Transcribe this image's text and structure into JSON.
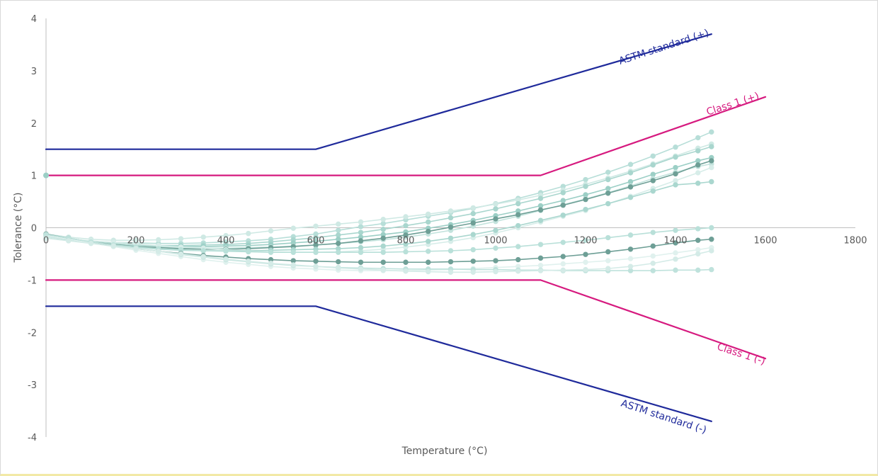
{
  "chart_data": {
    "type": "line",
    "xlabel": "Temperature (°C)",
    "ylabel": "Tolerance (°C)",
    "xlim": [
      0,
      1800
    ],
    "ylim": [
      -4,
      4
    ],
    "x_ticks": [
      "0",
      "200",
      "400",
      "600",
      "800",
      "1000",
      "1200",
      "1400",
      "1600",
      "1800"
    ],
    "y_ticks": [
      "-4",
      "-3",
      "-2",
      "-1",
      "0",
      "1",
      "2",
      "3",
      "4"
    ],
    "grid": false,
    "legend": "none",
    "limit_lines": [
      {
        "label": "ASTM standard (+)",
        "color": "#1f2a9b",
        "points": [
          [
            0,
            1.5
          ],
          [
            560,
            1.5
          ],
          [
            600,
            1.5
          ],
          [
            1480,
            3.7
          ]
        ]
      },
      {
        "label": "ASTM standard (-)",
        "color": "#1f2a9b",
        "points": [
          [
            0,
            -1.5
          ],
          [
            560,
            -1.5
          ],
          [
            600,
            -1.5
          ],
          [
            1480,
            -3.7
          ]
        ]
      },
      {
        "label": "Class 1 (+)",
        "color": "#d61a7f",
        "points": [
          [
            0,
            1.0
          ],
          [
            1060,
            1.0
          ],
          [
            1100,
            1.0
          ],
          [
            1600,
            2.5
          ]
        ]
      },
      {
        "label": "Class 1 (-)",
        "color": "#d61a7f",
        "points": [
          [
            0,
            -1.0
          ],
          [
            1060,
            -1.0
          ],
          [
            1100,
            -1.0
          ],
          [
            1600,
            -2.5
          ]
        ]
      }
    ],
    "measured_series": {
      "x": [
        0,
        50,
        100,
        150,
        200,
        250,
        300,
        350,
        400,
        450,
        500,
        550,
        600,
        650,
        700,
        750,
        800,
        850,
        900,
        950,
        1000,
        1050,
        1100,
        1150,
        1200,
        1250,
        1300,
        1350,
        1400,
        1450,
        1480
      ],
      "series": [
        {
          "color": "#b7ded8",
          "values": [
            -0.16,
            -0.22,
            -0.26,
            -0.28,
            -0.29,
            -0.3,
            -0.3,
            -0.29,
            -0.27,
            -0.25,
            -0.22,
            -0.17,
            -0.12,
            -0.05,
            0.02,
            0.08,
            0.15,
            0.22,
            0.29,
            0.37,
            0.46,
            0.56,
            0.67,
            0.79,
            0.92,
            1.06,
            1.21,
            1.37,
            1.54,
            1.72,
            1.83
          ]
        },
        {
          "color": "#cfe9e4",
          "values": [
            -0.12,
            -0.18,
            -0.22,
            -0.24,
            -0.24,
            -0.23,
            -0.21,
            -0.18,
            -0.15,
            -0.11,
            -0.06,
            -0.01,
            0.03,
            0.07,
            0.11,
            0.16,
            0.21,
            0.26,
            0.32,
            0.38,
            0.45,
            0.53,
            0.62,
            0.72,
            0.83,
            0.95,
            1.08,
            1.22,
            1.37,
            1.52,
            1.6
          ]
        },
        {
          "color": "#a9d6ce",
          "values": [
            -0.18,
            -0.23,
            -0.28,
            -0.31,
            -0.33,
            -0.34,
            -0.34,
            -0.33,
            -0.32,
            -0.3,
            -0.27,
            -0.23,
            -0.19,
            -0.14,
            -0.09,
            -0.03,
            0.04,
            0.11,
            0.19,
            0.27,
            0.36,
            0.46,
            0.56,
            0.67,
            0.79,
            0.92,
            1.05,
            1.2,
            1.35,
            1.47,
            1.55
          ]
        },
        {
          "color": "#9ccfc6",
          "values": [
            -0.15,
            -0.21,
            -0.26,
            -0.3,
            -0.33,
            -0.35,
            -0.36,
            -0.36,
            -0.35,
            -0.34,
            -0.32,
            -0.29,
            -0.26,
            -0.22,
            -0.18,
            -0.13,
            -0.08,
            -0.01,
            0.06,
            0.14,
            0.23,
            0.32,
            0.42,
            0.52,
            0.63,
            0.75,
            0.88,
            1.02,
            1.15,
            1.28,
            1.34
          ]
        },
        {
          "color": "#c3e3dd",
          "values": [
            -0.17,
            -0.22,
            -0.27,
            -0.31,
            -0.34,
            -0.37,
            -0.38,
            -0.39,
            -0.39,
            -0.38,
            -0.37,
            -0.35,
            -0.33,
            -0.3,
            -0.27,
            -0.23,
            -0.18,
            -0.12,
            -0.05,
            0.03,
            0.12,
            0.22,
            0.33,
            0.44,
            0.55,
            0.67,
            0.8,
            0.94,
            1.06,
            1.17,
            1.22
          ]
        },
        {
          "color": "#6e9f96",
          "values": [
            -0.12,
            -0.2,
            -0.27,
            -0.32,
            -0.36,
            -0.38,
            -0.4,
            -0.41,
            -0.41,
            -0.4,
            -0.38,
            -0.36,
            -0.33,
            -0.3,
            -0.25,
            -0.2,
            -0.14,
            -0.07,
            0.01,
            0.09,
            0.17,
            0.25,
            0.34,
            0.43,
            0.54,
            0.66,
            0.78,
            0.9,
            1.03,
            1.2,
            1.28
          ]
        },
        {
          "color": "#d7ede9",
          "values": [
            -0.18,
            -0.22,
            -0.25,
            -0.28,
            -0.31,
            -0.34,
            -0.37,
            -0.39,
            -0.42,
            -0.44,
            -0.46,
            -0.47,
            -0.47,
            -0.46,
            -0.44,
            -0.41,
            -0.37,
            -0.32,
            -0.26,
            -0.19,
            -0.1,
            0.0,
            0.11,
            0.22,
            0.33,
            0.46,
            0.6,
            0.75,
            0.9,
            1.05,
            1.15
          ]
        },
        {
          "color": "#aad7cf",
          "values": [
            -0.16,
            -0.22,
            -0.28,
            -0.33,
            -0.37,
            -0.41,
            -0.43,
            -0.44,
            -0.44,
            -0.44,
            -0.43,
            -0.42,
            -0.41,
            -0.4,
            -0.38,
            -0.35,
            -0.31,
            -0.26,
            -0.2,
            -0.13,
            -0.05,
            0.04,
            0.14,
            0.24,
            0.35,
            0.46,
            0.58,
            0.7,
            0.82,
            0.85,
            0.88
          ]
        },
        {
          "color": "#b9e0d9",
          "values": [
            -0.16,
            -0.22,
            -0.28,
            -0.33,
            -0.37,
            -0.4,
            -0.42,
            -0.44,
            -0.45,
            -0.46,
            -0.47,
            -0.47,
            -0.47,
            -0.47,
            -0.47,
            -0.47,
            -0.46,
            -0.45,
            -0.44,
            -0.42,
            -0.39,
            -0.36,
            -0.32,
            -0.28,
            -0.24,
            -0.19,
            -0.14,
            -0.09,
            -0.05,
            -0.02,
            0.0
          ]
        },
        {
          "color": "#6e9f96",
          "values": [
            -0.14,
            -0.21,
            -0.28,
            -0.34,
            -0.4,
            -0.45,
            -0.49,
            -0.53,
            -0.56,
            -0.59,
            -0.61,
            -0.63,
            -0.64,
            -0.65,
            -0.66,
            -0.66,
            -0.66,
            -0.66,
            -0.65,
            -0.64,
            -0.63,
            -0.61,
            -0.58,
            -0.55,
            -0.51,
            -0.46,
            -0.41,
            -0.35,
            -0.29,
            -0.24,
            -0.22
          ]
        },
        {
          "color": "#e0f1ee",
          "values": [
            -0.15,
            -0.22,
            -0.29,
            -0.36,
            -0.43,
            -0.49,
            -0.55,
            -0.61,
            -0.66,
            -0.7,
            -0.74,
            -0.77,
            -0.79,
            -0.81,
            -0.82,
            -0.82,
            -0.82,
            -0.81,
            -0.8,
            -0.78,
            -0.76,
            -0.74,
            -0.72,
            -0.69,
            -0.66,
            -0.63,
            -0.59,
            -0.54,
            -0.48,
            -0.42,
            -0.38
          ]
        },
        {
          "color": "#bfe2dc",
          "values": [
            -0.13,
            -0.2,
            -0.27,
            -0.33,
            -0.39,
            -0.45,
            -0.51,
            -0.56,
            -0.61,
            -0.65,
            -0.69,
            -0.72,
            -0.74,
            -0.76,
            -0.77,
            -0.78,
            -0.79,
            -0.79,
            -0.79,
            -0.8,
            -0.8,
            -0.81,
            -0.81,
            -0.82,
            -0.82,
            -0.82,
            -0.82,
            -0.82,
            -0.81,
            -0.81,
            -0.8
          ]
        },
        {
          "color": "#d4ebe7",
          "values": [
            -0.2,
            -0.25,
            -0.3,
            -0.35,
            -0.4,
            -0.45,
            -0.5,
            -0.55,
            -0.6,
            -0.64,
            -0.68,
            -0.71,
            -0.74,
            -0.77,
            -0.79,
            -0.81,
            -0.83,
            -0.84,
            -0.85,
            -0.85,
            -0.84,
            -0.83,
            -0.82,
            -0.81,
            -0.8,
            -0.78,
            -0.74,
            -0.68,
            -0.6,
            -0.5,
            -0.44
          ]
        }
      ],
      "start_marker": {
        "x": 0,
        "y": 1.0,
        "color": "#9ccfc6"
      }
    }
  }
}
